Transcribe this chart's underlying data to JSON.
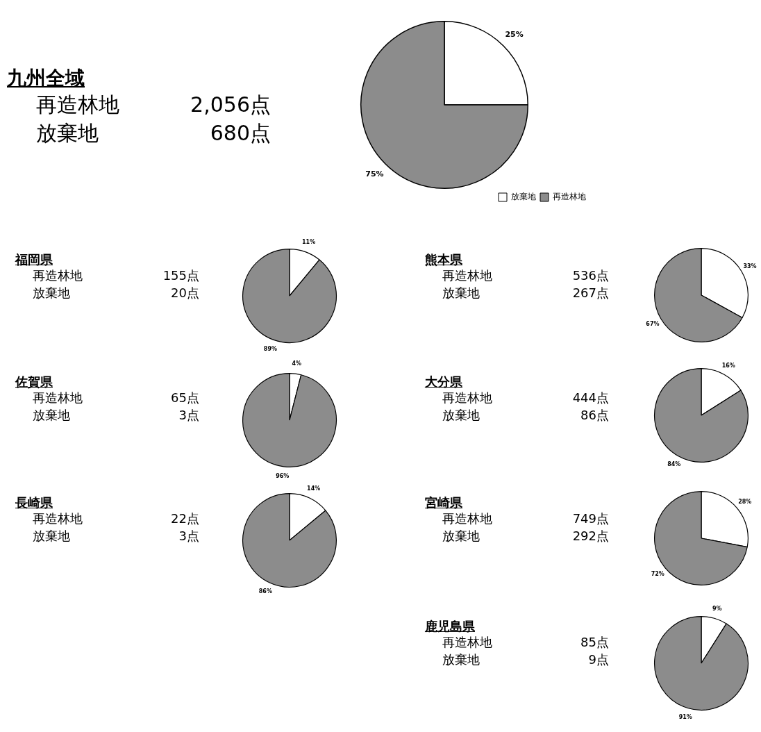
{
  "chart_data": [
    {
      "type": "other",
      "title": "九州全域",
      "annotations": [
        "再造林地",
        "2,056点",
        "放棄地",
        "680点"
      ]
    },
    {
      "type": "pie",
      "categories": [
        "放棄地",
        "再造林地"
      ],
      "values": [
        25,
        75
      ],
      "colors": [
        "#ffffff",
        "#8c8c8c"
      ],
      "value_labels": [
        "25%",
        "75%"
      ],
      "legend": "bottom right"
    },
    {
      "type": "other",
      "title": "福岡県",
      "annotations": [
        "再造林地",
        "155点",
        "放棄地",
        "20点"
      ]
    },
    {
      "type": "pie",
      "categories": [
        null,
        null
      ],
      "values": [
        11,
        89
      ],
      "colors": [
        "#ffffff",
        "#8c8c8c"
      ],
      "value_labels": [
        "11%",
        "89%"
      ]
    },
    {
      "type": "other",
      "title": "熊本県",
      "annotations": [
        "再造林地",
        "536点",
        "放棄地",
        "267点"
      ]
    },
    {
      "type": "pie",
      "categories": [
        null,
        null
      ],
      "values": [
        33,
        67
      ],
      "colors": [
        "#ffffff",
        "#8c8c8c"
      ],
      "value_labels": [
        "33%",
        "67%"
      ]
    },
    {
      "type": "other",
      "title": "佐賀県",
      "annotations": [
        "再造林地",
        "65点",
        "放棄地",
        "3点"
      ]
    },
    {
      "type": "pie",
      "categories": [
        null,
        null
      ],
      "values": [
        4,
        96
      ],
      "colors": [
        "#ffffff",
        "#8c8c8c"
      ],
      "value_labels": [
        "4%",
        "96%"
      ]
    },
    {
      "type": "other",
      "title": "大分県",
      "annotations": [
        "再造林地",
        "444点",
        "放棄地",
        "86点"
      ]
    },
    {
      "type": "pie",
      "categories": [
        null,
        null
      ],
      "values": [
        16,
        84
      ],
      "colors": [
        "#ffffff",
        "#8c8c8c"
      ],
      "value_labels": [
        "16%",
        "84%"
      ]
    },
    {
      "type": "other",
      "title": "長崎県",
      "annotations": [
        "再造林地",
        "22点",
        "放棄地",
        "3点"
      ]
    },
    {
      "type": "pie",
      "categories": [
        null,
        null
      ],
      "values": [
        14,
        86
      ],
      "colors": [
        "#ffffff",
        "#8c8c8c"
      ],
      "value_labels": [
        "14%",
        "86%"
      ]
    },
    {
      "type": "other",
      "title": "宮崎県",
      "annotations": [
        "再造林地",
        "749点",
        "放棄地",
        "292点"
      ]
    },
    {
      "type": "pie",
      "categories": [
        null,
        null
      ],
      "values": [
        28,
        72
      ],
      "colors": [
        "#ffffff",
        "#8c8c8c"
      ],
      "value_labels": [
        "28%",
        "72%"
      ]
    },
    {
      "type": "other",
      "title": "鹿児島県",
      "annotations": [
        "再造林地",
        "85点",
        "放棄地",
        "9点"
      ]
    },
    {
      "type": "pie",
      "categories": [
        null,
        null
      ],
      "values": [
        9,
        91
      ],
      "colors": [
        "#ffffff",
        "#8c8c8c"
      ],
      "value_labels": [
        "9%",
        "91%"
      ]
    }
  ]
}
